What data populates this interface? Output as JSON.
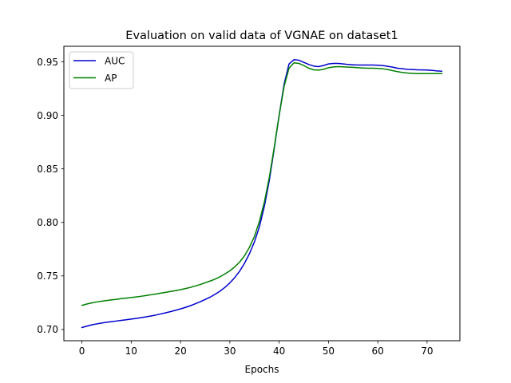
{
  "chart_data": {
    "type": "line",
    "title": "Evaluation on valid data of VGNAE on dataset1",
    "xlabel": "Epochs",
    "ylabel": "",
    "xlim": [
      -3.65,
      76.65
    ],
    "ylim": [
      0.6895,
      0.9645
    ],
    "xticks": [
      0,
      10,
      20,
      30,
      40,
      50,
      60,
      70
    ],
    "xtick_labels": [
      "0",
      "10",
      "20",
      "30",
      "40",
      "50",
      "60",
      "70"
    ],
    "yticks": [
      0.7,
      0.75,
      0.8,
      0.85,
      0.9,
      0.95
    ],
    "ytick_labels": [
      "0.70",
      "0.75",
      "0.80",
      "0.85",
      "0.90",
      "0.95"
    ],
    "grid": false,
    "legend_position": "upper-left",
    "series": [
      {
        "name": "AUC",
        "color": "#0000cc",
        "x": [
          0,
          1,
          2,
          3,
          4,
          5,
          6,
          7,
          8,
          9,
          10,
          11,
          12,
          13,
          14,
          15,
          16,
          17,
          18,
          19,
          20,
          21,
          22,
          23,
          24,
          25,
          26,
          27,
          28,
          29,
          30,
          31,
          32,
          33,
          34,
          35,
          36,
          37,
          38,
          39,
          40,
          41,
          42,
          43,
          44,
          45,
          46,
          47,
          48,
          49,
          50,
          51,
          52,
          53,
          54,
          55,
          56,
          57,
          58,
          59,
          60,
          61,
          62,
          63,
          64,
          65,
          66,
          67,
          68,
          69,
          70,
          71,
          72,
          73
        ],
        "values": [
          0.7018,
          0.7031,
          0.7043,
          0.7052,
          0.706,
          0.7067,
          0.7073,
          0.7079,
          0.7085,
          0.7091,
          0.7097,
          0.7103,
          0.711,
          0.7118,
          0.7126,
          0.7135,
          0.7145,
          0.7156,
          0.7167,
          0.7179,
          0.7192,
          0.7206,
          0.7222,
          0.724,
          0.7259,
          0.728,
          0.7302,
          0.7328,
          0.7358,
          0.7393,
          0.7435,
          0.7485,
          0.7545,
          0.762,
          0.771,
          0.782,
          0.796,
          0.815,
          0.839,
          0.869,
          0.9,
          0.929,
          0.948,
          0.952,
          0.9515,
          0.9495,
          0.9475,
          0.946,
          0.9455,
          0.9465,
          0.948,
          0.9485,
          0.9485,
          0.948,
          0.9475,
          0.9472,
          0.947,
          0.947,
          0.947,
          0.947,
          0.9468,
          0.9465,
          0.9458,
          0.945,
          0.944,
          0.9435,
          0.943,
          0.9428,
          0.9425,
          0.9424,
          0.9423,
          0.942,
          0.9415,
          0.9412
        ]
      },
      {
        "name": "AP",
        "color": "#007f00",
        "x": [
          0,
          1,
          2,
          3,
          4,
          5,
          6,
          7,
          8,
          9,
          10,
          11,
          12,
          13,
          14,
          15,
          16,
          17,
          18,
          19,
          20,
          21,
          22,
          23,
          24,
          25,
          26,
          27,
          28,
          29,
          30,
          31,
          32,
          33,
          34,
          35,
          36,
          37,
          38,
          39,
          40,
          41,
          42,
          43,
          44,
          45,
          46,
          47,
          48,
          49,
          50,
          51,
          52,
          53,
          54,
          55,
          56,
          57,
          58,
          59,
          60,
          61,
          62,
          63,
          64,
          65,
          66,
          67,
          68,
          69,
          70,
          71,
          72,
          73
        ],
        "values": [
          0.7225,
          0.7238,
          0.7248,
          0.7257,
          0.7264,
          0.727,
          0.7276,
          0.7282,
          0.7288,
          0.7293,
          0.7298,
          0.7304,
          0.731,
          0.7317,
          0.7324,
          0.7331,
          0.7339,
          0.7347,
          0.7355,
          0.7363,
          0.7372,
          0.7382,
          0.7393,
          0.7406,
          0.742,
          0.7436,
          0.7452,
          0.747,
          0.7492,
          0.7518,
          0.7548,
          0.7585,
          0.763,
          0.769,
          0.777,
          0.787,
          0.801,
          0.819,
          0.842,
          0.87,
          0.9,
          0.927,
          0.944,
          0.949,
          0.9485,
          0.9465,
          0.944,
          0.9425,
          0.9422,
          0.943,
          0.9445,
          0.9452,
          0.9455,
          0.9453,
          0.945,
          0.9448,
          0.9445,
          0.9442,
          0.944,
          0.944,
          0.9438,
          0.9435,
          0.9428,
          0.9418,
          0.9408,
          0.94,
          0.9395,
          0.9392,
          0.939,
          0.939,
          0.939,
          0.939,
          0.939,
          0.939
        ]
      }
    ]
  }
}
